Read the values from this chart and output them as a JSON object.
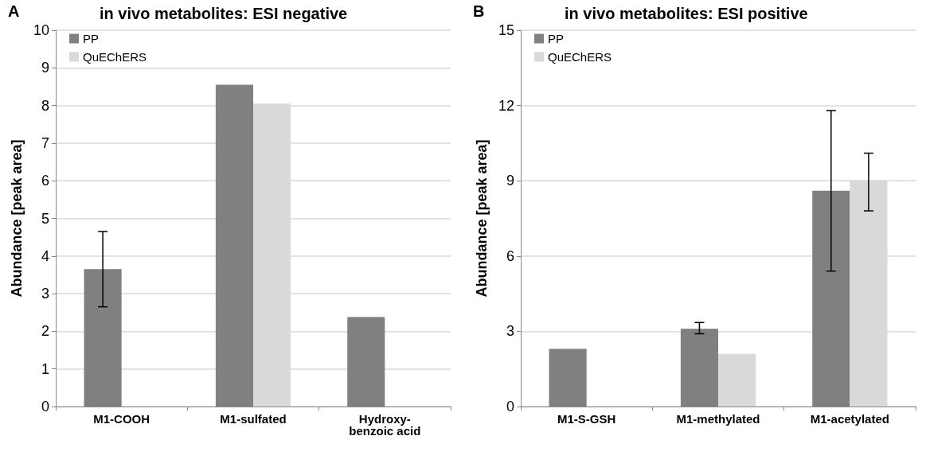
{
  "chart_data": [
    {
      "type": "bar",
      "title": "in vivo metabolites: ESI negative",
      "ylabel": "Abundance [peak area]",
      "annotations": [
        "A"
      ],
      "categories": [
        "M1-COOH",
        "M1-sulfated",
        "Hydroxy-\nbenzoic acid"
      ],
      "series": [
        {
          "name": "PP",
          "color": "#808080",
          "values": [
            3.65,
            8.55,
            2.38
          ],
          "errors": [
            [
              2.65,
              4.65
            ],
            null,
            null
          ]
        },
        {
          "name": "QuEChERS",
          "color": "#d9d9d9",
          "values": [
            null,
            8.05,
            null
          ]
        }
      ],
      "ylim": [
        0,
        10
      ],
      "yticks": [
        0,
        1,
        2,
        3,
        4,
        5,
        6,
        7,
        8,
        9,
        10
      ],
      "grid": "y",
      "legend": "top left"
    },
    {
      "type": "bar",
      "title": "in vivo metabolites: ESI positive",
      "ylabel": "Abundance [peak area]",
      "annotations": [
        "B"
      ],
      "categories": [
        "M1-S-GSH",
        "M1-methylated",
        "M1-acetylated"
      ],
      "series": [
        {
          "name": "PP",
          "color": "#808080",
          "values": [
            2.3,
            3.1,
            8.6
          ],
          "errors": [
            null,
            [
              2.9,
              3.35
            ],
            [
              5.4,
              11.8
            ]
          ]
        },
        {
          "name": "QuEChERS",
          "color": "#d9d9d9",
          "values": [
            null,
            2.1,
            9.0
          ],
          "errors": [
            null,
            null,
            [
              7.8,
              10.1
            ]
          ]
        }
      ],
      "ylim": [
        0,
        15
      ],
      "yticks": [
        0,
        3,
        6,
        9,
        12,
        15
      ],
      "grid": "y",
      "legend": "top left"
    }
  ]
}
